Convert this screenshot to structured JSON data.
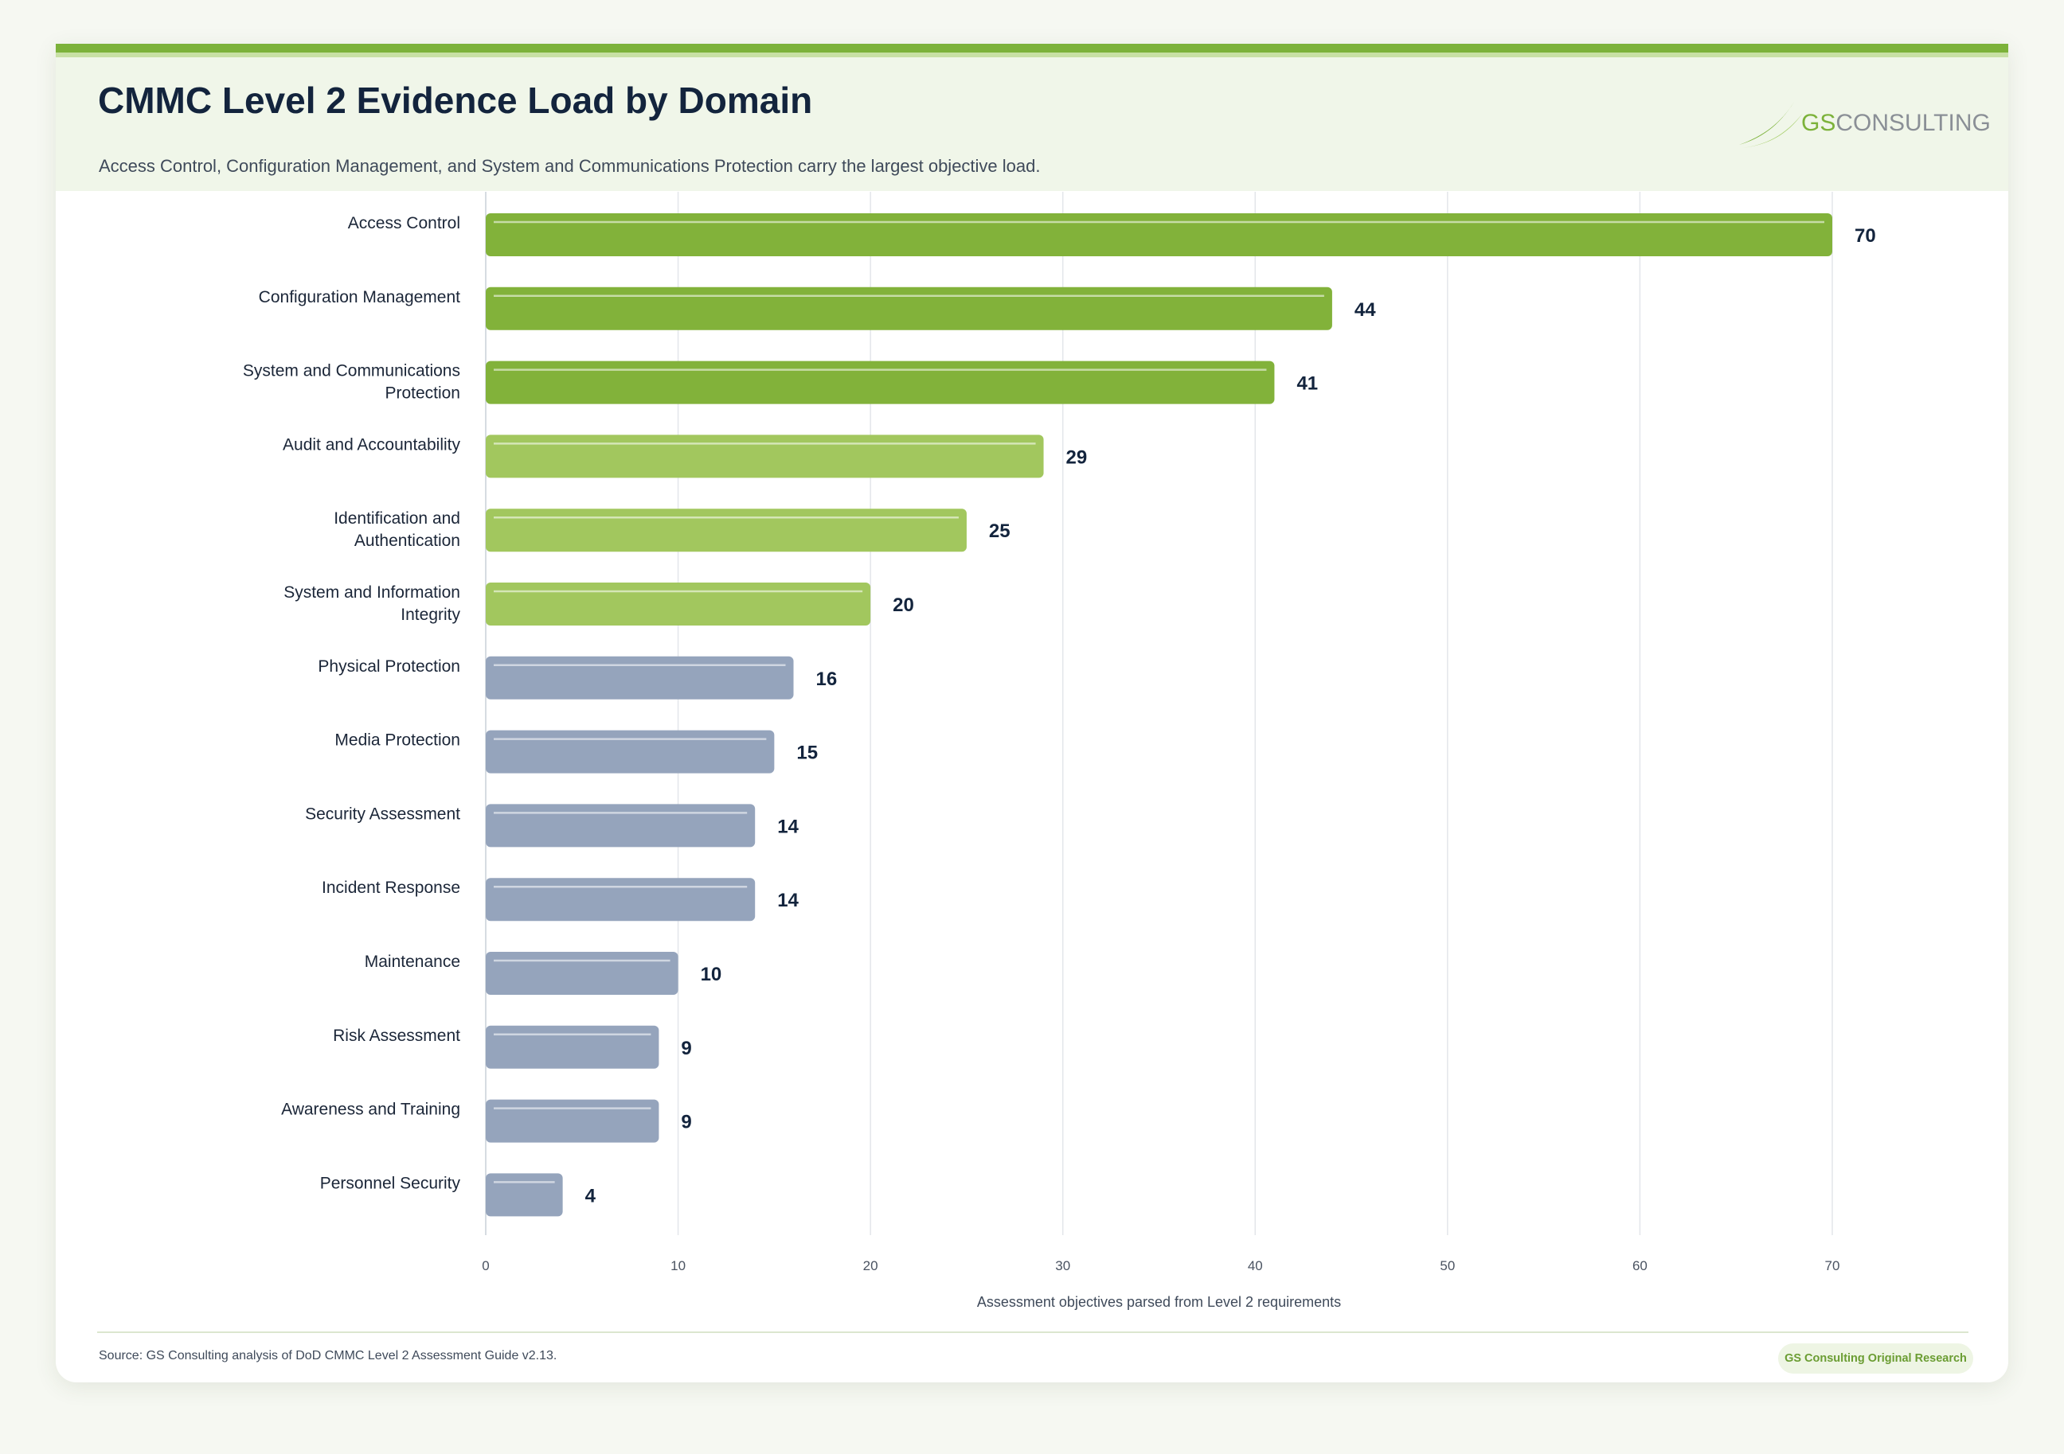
{
  "header": {
    "title": "CMMC Level 2 Evidence Load by Domain",
    "subtitle": "Access Control, Configuration Management, and System and Communications Protection carry the largest objective load."
  },
  "logo": {
    "text_gs": "GS",
    "text_consulting": "CONSULTING"
  },
  "footer": {
    "source": "Source: GS Consulting analysis of DoD CMMC Level 2 Assessment Guide v2.13.",
    "badge": "GS Consulting Original Research"
  },
  "colors": {
    "tier_high": "#82b23a",
    "tier_mid": "#a2c75e",
    "tier_low": "#95a4bc",
    "accent": "#7cb23a"
  },
  "chart_data": {
    "type": "bar",
    "orientation": "horizontal",
    "title": "CMMC Level 2 Evidence Load by Domain",
    "subtitle": "Access Control, Configuration Management, and System and Communications Protection carry the largest objective load.",
    "xlabel": "Assessment objectives parsed from Level 2 requirements",
    "ylabel": "",
    "xlim": [
      0,
      70
    ],
    "xticks": [
      0,
      10,
      20,
      30,
      40,
      50,
      60,
      70
    ],
    "grid": true,
    "categories": [
      "Access Control",
      "Configuration Management",
      "System and Communications Protection",
      "Audit and Accountability",
      "Identification and Authentication",
      "System and Information Integrity",
      "Physical Protection",
      "Media Protection",
      "Security Assessment",
      "Incident Response",
      "Maintenance",
      "Risk Assessment",
      "Awareness and Training",
      "Personnel Security"
    ],
    "category_lines": [
      [
        "Access Control"
      ],
      [
        "Configuration Management"
      ],
      [
        "System and Communications",
        "Protection"
      ],
      [
        "Audit and Accountability"
      ],
      [
        "Identification and",
        "Authentication"
      ],
      [
        "System and Information",
        "Integrity"
      ],
      [
        "Physical Protection"
      ],
      [
        "Media Protection"
      ],
      [
        "Security Assessment"
      ],
      [
        "Incident Response"
      ],
      [
        "Maintenance"
      ],
      [
        "Risk Assessment"
      ],
      [
        "Awareness and Training"
      ],
      [
        "Personnel Security"
      ]
    ],
    "values": [
      70,
      44,
      41,
      29,
      25,
      20,
      16,
      15,
      14,
      14,
      10,
      9,
      9,
      4
    ],
    "tiers": [
      "high",
      "high",
      "high",
      "mid",
      "mid",
      "mid",
      "low",
      "low",
      "low",
      "low",
      "low",
      "low",
      "low",
      "low"
    ]
  }
}
